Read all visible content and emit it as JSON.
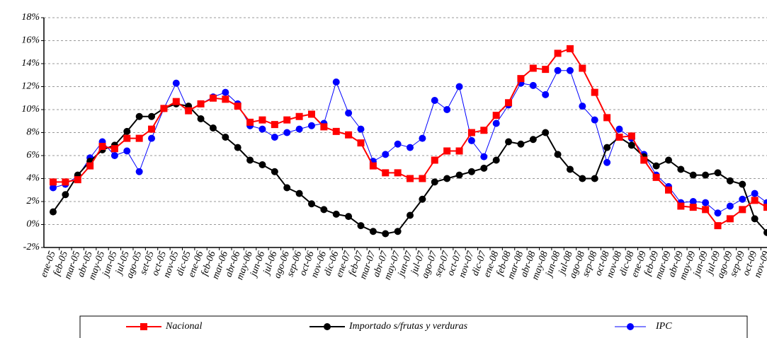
{
  "chart_data": {
    "type": "line",
    "categories": [
      "ene-05",
      "feb-05",
      "mar-05",
      "abr-05",
      "may-05",
      "jun-05",
      "jul-05",
      "ago-05",
      "set-05",
      "oct-05",
      "nov-05",
      "dic-05",
      "ene-06",
      "feb-06",
      "mar-06",
      "abr-06",
      "may-06",
      "jun-06",
      "jul-06",
      "ago-06",
      "sep-06",
      "oct-06",
      "nov-06",
      "dic-06",
      "ene-07",
      "feb-07",
      "mar-07",
      "abr-07",
      "may-07",
      "jun-07",
      "jul-07",
      "ago-07",
      "sep-07",
      "oct-07",
      "nov-07",
      "dic-07",
      "ene-08",
      "feb-08",
      "mar-08",
      "abr-08",
      "may-08",
      "jun-08",
      "jul-08",
      "ago-08",
      "sep-08",
      "oct-08",
      "nov-08",
      "dic-08",
      "ene-09",
      "feb-09",
      "mar-09",
      "abr-09",
      "may-09",
      "jun-09",
      "jul-09",
      "ago-09",
      "sep-09",
      "oct-09",
      "nov-09"
    ],
    "series": [
      {
        "name": "Nacional",
        "color": "#ff0000",
        "marker": "square",
        "values": [
          3.7,
          3.7,
          3.9,
          5.1,
          6.8,
          6.6,
          7.5,
          7.5,
          8.3,
          10.1,
          10.7,
          9.9,
          10.5,
          11.0,
          10.9,
          10.3,
          8.9,
          9.1,
          8.7,
          9.1,
          9.4,
          9.6,
          8.5,
          8.1,
          7.8,
          7.1,
          5.1,
          4.5,
          4.5,
          4.0,
          4.0,
          5.6,
          6.4,
          6.4,
          8.0,
          8.2,
          9.5,
          10.6,
          12.7,
          13.6,
          13.5,
          14.9,
          15.3,
          13.6,
          11.5,
          9.3,
          7.6,
          7.7,
          5.6,
          4.1,
          3.0,
          1.6,
          1.5,
          1.3,
          -0.1,
          0.5,
          1.3,
          2.1,
          1.5
        ]
      },
      {
        "name": "Importado s/frutas y verduras",
        "color": "#000000",
        "marker": "circle",
        "values": [
          1.1,
          2.6,
          4.3,
          5.5,
          6.5,
          6.9,
          8.1,
          9.4,
          9.4,
          10.1,
          10.5,
          10.3,
          9.2,
          8.4,
          7.6,
          6.7,
          5.6,
          5.2,
          4.6,
          3.2,
          2.7,
          1.8,
          1.3,
          0.9,
          0.7,
          -0.1,
          -0.6,
          -0.8,
          -0.6,
          0.8,
          2.2,
          3.7,
          4.0,
          4.3,
          4.6,
          4.9,
          5.6,
          7.2,
          7.0,
          7.4,
          8.0,
          6.1,
          4.8,
          4.0,
          4.0,
          6.7,
          7.6,
          6.9,
          5.9,
          5.1,
          5.6,
          4.8,
          4.3,
          4.3,
          4.5,
          3.8,
          3.5,
          0.5,
          -0.7
        ]
      },
      {
        "name": "IPC",
        "color": "#0000ff",
        "marker": "circle",
        "values": [
          3.2,
          3.5,
          4.2,
          5.8,
          7.2,
          6.0,
          6.4,
          4.6,
          7.5,
          10.1,
          12.3,
          9.9,
          10.5,
          11.1,
          11.5,
          10.5,
          8.6,
          8.3,
          7.6,
          8.0,
          8.3,
          8.6,
          8.8,
          12.4,
          9.7,
          8.3,
          5.5,
          6.1,
          7.0,
          6.7,
          7.5,
          10.8,
          10.0,
          12.0,
          7.3,
          5.9,
          8.8,
          10.4,
          12.3,
          12.1,
          11.3,
          13.4,
          13.4,
          10.3,
          9.1,
          5.4,
          8.3,
          7.5,
          6.1,
          4.3,
          3.3,
          1.9,
          2.0,
          1.9,
          1.0,
          1.6,
          2.2,
          2.7,
          1.9
        ]
      }
    ],
    "ylim": [
      -2,
      18
    ],
    "yticks": [
      {
        "value": -2,
        "label": "-2%"
      },
      {
        "value": 0,
        "label": "0%"
      },
      {
        "value": 2,
        "label": "2%"
      },
      {
        "value": 4,
        "label": "4%"
      },
      {
        "value": 6,
        "label": "6%"
      },
      {
        "value": 8,
        "label": "8%"
      },
      {
        "value": 10,
        "label": "10%"
      },
      {
        "value": 12,
        "label": "12%"
      },
      {
        "value": 14,
        "label": "14%"
      },
      {
        "value": 16,
        "label": "16%"
      },
      {
        "value": 18,
        "label": "18%"
      }
    ],
    "grid": true,
    "legend": "bottom"
  }
}
